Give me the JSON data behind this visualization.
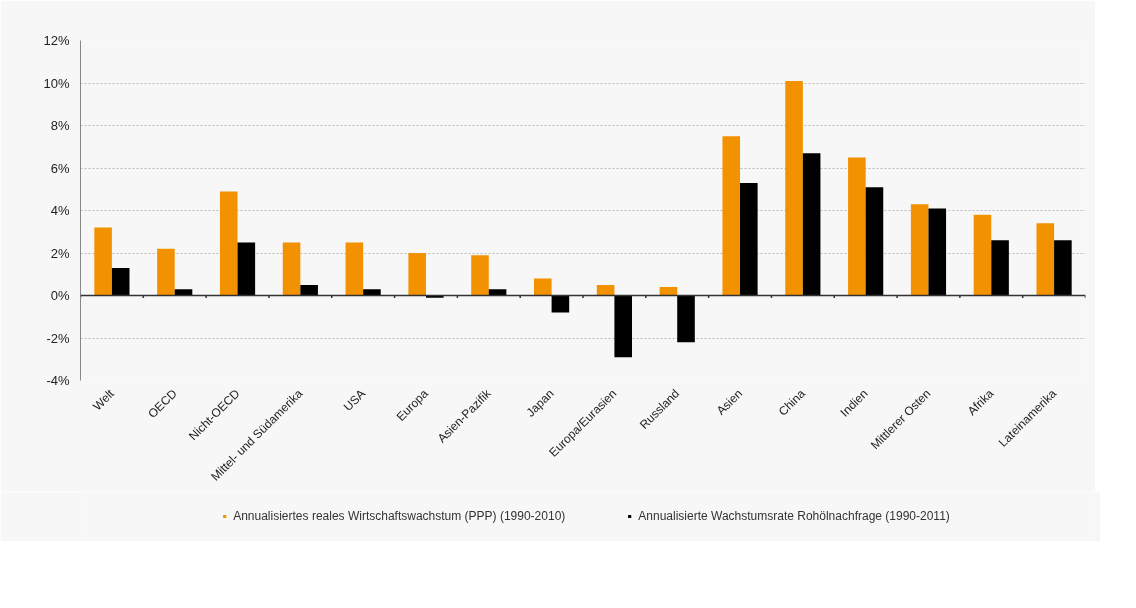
{
  "chart_data": {
    "type": "bar",
    "categories": [
      "Welt",
      "OECD",
      "Nicht-OECD",
      "Mittel- und Südamerika",
      "USA",
      "Europa",
      "Asien-Pazifik",
      "Japan",
      "Europa/Eurasien",
      "Russland",
      "Asien",
      "China",
      "Indien",
      "Mittlerer Osten",
      "Afrika",
      "Lateinamerika"
    ],
    "series": [
      {
        "name": "Annualisiertes reales Wirtschaftswachstum (PPP) (1990-2010)",
        "color": "#f39200",
        "values": [
          3.2,
          2.2,
          4.9,
          2.5,
          2.5,
          2.0,
          1.9,
          0.8,
          0.5,
          0.4,
          7.5,
          10.1,
          6.5,
          4.3,
          3.8,
          3.4
        ]
      },
      {
        "name": "Annualisierte Wachstumsrate Rohölnachfrage (1990-2011)",
        "color": "#000000",
        "values": [
          1.3,
          0.3,
          2.5,
          0.5,
          0.3,
          -0.1,
          0.3,
          -0.8,
          -2.9,
          -2.2,
          5.3,
          6.7,
          5.1,
          4.1,
          2.6,
          2.6
        ]
      }
    ],
    "ylim": [
      -4,
      12
    ],
    "yticks": [
      {
        "value": -4,
        "label": "-4%"
      },
      {
        "value": -2,
        "label": "-2%"
      },
      {
        "value": 0,
        "label": "0%"
      },
      {
        "value": 2,
        "label": "2%"
      },
      {
        "value": 4,
        "label": "4%"
      },
      {
        "value": 6,
        "label": "6%"
      },
      {
        "value": 8,
        "label": "8%"
      },
      {
        "value": 10,
        "label": "10%"
      },
      {
        "value": 12,
        "label": "12%"
      }
    ],
    "grid": "y",
    "legend": "bottom"
  }
}
